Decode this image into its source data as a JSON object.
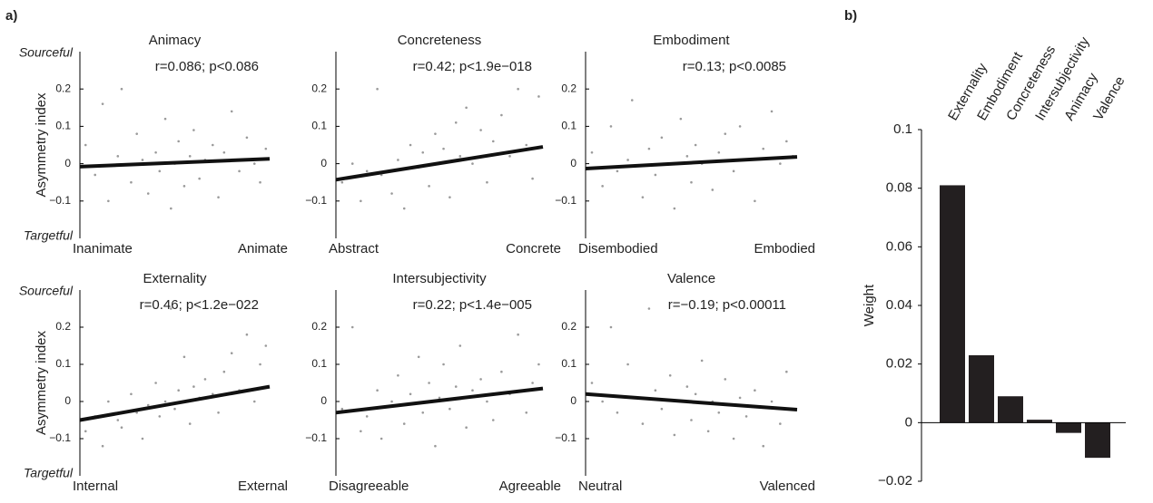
{
  "panel_labels": [
    "a)",
    "b)"
  ],
  "chart_data": [
    {
      "type": "scatter",
      "title": "Animacy",
      "annotation": "r=0.086; p<0.086",
      "ylabel": "Asymmetry index",
      "y_end_labels": [
        "Sourceful",
        "Targetful"
      ],
      "x_end_labels": [
        "Inanimate",
        "Animate"
      ],
      "xlim": [
        0,
        1
      ],
      "ylim": [
        -0.2,
        0.3
      ],
      "yticks": [
        {
          "value": -0.1,
          "label": "−0.1"
        },
        0,
        0.1,
        0.2
      ],
      "color": "#9a9a9a",
      "fit_color": "#111111",
      "x": [
        0.03,
        0.08,
        0.12,
        0.15,
        0.2,
        0.22,
        0.27,
        0.3,
        0.33,
        0.36,
        0.4,
        0.42,
        0.45,
        0.48,
        0.5,
        0.52,
        0.55,
        0.58,
        0.6,
        0.63,
        0.66,
        0.7,
        0.73,
        0.76,
        0.8,
        0.84,
        0.88,
        0.92,
        0.95,
        0.98
      ],
      "y": [
        0.05,
        -0.03,
        0.16,
        -0.1,
        0.02,
        0.2,
        -0.05,
        0.08,
        0.01,
        -0.08,
        0.03,
        -0.02,
        0.12,
        -0.12,
        0.0,
        0.06,
        -0.06,
        0.02,
        0.09,
        -0.04,
        0.01,
        0.05,
        -0.09,
        0.03,
        0.14,
        -0.02,
        0.07,
        0.0,
        -0.05,
        0.04
      ],
      "fit_line": [
        -0.008,
        0.013
      ]
    },
    {
      "type": "scatter",
      "title": "Concreteness",
      "annotation": "r=0.42; p<1.9e−018",
      "x_end_labels": [
        "Abstract",
        "Concrete"
      ],
      "xlim": [
        0,
        1
      ],
      "ylim": [
        -0.2,
        0.3
      ],
      "yticks": [
        {
          "value": -0.1,
          "label": "−0.1"
        },
        0,
        0.1,
        0.2
      ],
      "color": "#9a9a9a",
      "fit_color": "#111111",
      "x": [
        0.03,
        0.08,
        0.12,
        0.15,
        0.2,
        0.22,
        0.27,
        0.3,
        0.33,
        0.36,
        0.4,
        0.42,
        0.45,
        0.48,
        0.5,
        0.52,
        0.55,
        0.58,
        0.6,
        0.63,
        0.66,
        0.7,
        0.73,
        0.76,
        0.8,
        0.84,
        0.88,
        0.92,
        0.95,
        0.98
      ],
      "y": [
        -0.05,
        0.0,
        -0.1,
        -0.02,
        0.2,
        -0.03,
        -0.08,
        0.01,
        -0.12,
        0.05,
        -0.01,
        0.03,
        -0.06,
        0.08,
        0.0,
        0.04,
        -0.09,
        0.11,
        0.02,
        0.15,
        0.0,
        0.09,
        -0.05,
        0.06,
        0.13,
        0.02,
        0.2,
        0.05,
        -0.04,
        0.18
      ],
      "fit_line": [
        -0.043,
        0.045
      ]
    },
    {
      "type": "scatter",
      "title": "Embodiment",
      "annotation": "r=0.13; p<0.0085",
      "x_end_labels": [
        "Disembodied",
        "Embodied"
      ],
      "xlim": [
        0,
        1
      ],
      "ylim": [
        -0.2,
        0.3
      ],
      "yticks": [
        {
          "value": -0.1,
          "label": "−0.1"
        },
        0,
        0.1,
        0.2
      ],
      "color": "#9a9a9a",
      "fit_color": "#111111",
      "x": [
        0.03,
        0.08,
        0.12,
        0.15,
        0.2,
        0.22,
        0.27,
        0.3,
        0.33,
        0.36,
        0.4,
        0.42,
        0.45,
        0.48,
        0.5,
        0.52,
        0.55,
        0.58,
        0.6,
        0.63,
        0.66,
        0.7,
        0.73,
        0.76,
        0.8,
        0.84,
        0.88,
        0.92,
        0.95,
        0.98
      ],
      "y": [
        0.03,
        -0.06,
        0.1,
        -0.02,
        0.01,
        0.17,
        -0.09,
        0.04,
        -0.03,
        0.07,
        0.0,
        -0.12,
        0.12,
        0.02,
        -0.05,
        0.05,
        0.0,
        0.25,
        -0.07,
        0.03,
        0.08,
        -0.02,
        0.1,
        0.01,
        -0.1,
        0.04,
        0.14,
        0.0,
        0.06,
        0.02
      ],
      "fit_line": [
        -0.013,
        0.018
      ]
    },
    {
      "type": "scatter",
      "title": "Externality",
      "annotation": "r=0.46; p<1.2e−022",
      "ylabel": "Asymmetry index",
      "y_end_labels": [
        "Sourceful",
        "Targetful"
      ],
      "x_end_labels": [
        "Internal",
        "External"
      ],
      "xlim": [
        0,
        1
      ],
      "ylim": [
        -0.2,
        0.3
      ],
      "yticks": [
        {
          "value": -0.1,
          "label": "−0.1"
        },
        0,
        0.1,
        0.2
      ],
      "color": "#9a9a9a",
      "fit_color": "#111111",
      "x": [
        0.03,
        0.08,
        0.12,
        0.15,
        0.2,
        0.22,
        0.27,
        0.3,
        0.33,
        0.36,
        0.4,
        0.42,
        0.45,
        0.48,
        0.5,
        0.52,
        0.55,
        0.58,
        0.6,
        0.63,
        0.66,
        0.7,
        0.73,
        0.76,
        0.8,
        0.84,
        0.88,
        0.92,
        0.95,
        0.98
      ],
      "y": [
        -0.08,
        -0.04,
        -0.12,
        0.0,
        -0.05,
        -0.07,
        0.02,
        -0.03,
        -0.1,
        -0.01,
        0.05,
        -0.04,
        0.0,
        0.25,
        -0.02,
        0.03,
        0.12,
        -0.06,
        0.04,
        0.01,
        0.06,
        0.02,
        -0.03,
        0.08,
        0.13,
        0.03,
        0.18,
        0.0,
        0.1,
        0.15
      ],
      "fit_line": [
        -0.05,
        0.04
      ]
    },
    {
      "type": "scatter",
      "title": "Intersubjectivity",
      "annotation": "r=0.22; p<1.4e−005",
      "x_end_labels": [
        "Disagreeable",
        "Agreeable"
      ],
      "xlim": [
        0,
        1
      ],
      "ylim": [
        -0.2,
        0.3
      ],
      "yticks": [
        {
          "value": -0.1,
          "label": "−0.1"
        },
        0,
        0.1,
        0.2
      ],
      "color": "#9a9a9a",
      "fit_color": "#111111",
      "x": [
        0.03,
        0.08,
        0.12,
        0.15,
        0.2,
        0.22,
        0.27,
        0.3,
        0.33,
        0.36,
        0.4,
        0.42,
        0.45,
        0.48,
        0.5,
        0.52,
        0.55,
        0.58,
        0.6,
        0.63,
        0.66,
        0.7,
        0.73,
        0.76,
        0.8,
        0.84,
        0.88,
        0.92,
        0.95,
        0.98
      ],
      "y": [
        -0.02,
        0.2,
        -0.08,
        -0.04,
        0.03,
        -0.1,
        0.0,
        0.07,
        -0.06,
        0.02,
        0.12,
        -0.03,
        0.05,
        -0.12,
        0.01,
        0.1,
        -0.02,
        0.04,
        0.15,
        -0.07,
        0.03,
        0.06,
        0.0,
        -0.05,
        0.08,
        0.02,
        0.18,
        -0.03,
        0.05,
        0.1
      ],
      "fit_line": [
        -0.03,
        0.035
      ]
    },
    {
      "type": "scatter",
      "title": "Valence",
      "annotation": "r=−0.19; p<0.00011",
      "x_end_labels": [
        "Neutral",
        "Valenced"
      ],
      "xlim": [
        0,
        1
      ],
      "ylim": [
        -0.2,
        0.3
      ],
      "yticks": [
        {
          "value": -0.1,
          "label": "−0.1"
        },
        0,
        0.1,
        0.2
      ],
      "color": "#9a9a9a",
      "fit_color": "#111111",
      "x": [
        0.03,
        0.08,
        0.12,
        0.15,
        0.2,
        0.22,
        0.27,
        0.3,
        0.33,
        0.36,
        0.4,
        0.42,
        0.45,
        0.48,
        0.5,
        0.52,
        0.55,
        0.58,
        0.6,
        0.63,
        0.66,
        0.7,
        0.73,
        0.76,
        0.8,
        0.84,
        0.88,
        0.92,
        0.95,
        0.98
      ],
      "y": [
        0.05,
        0.0,
        0.2,
        -0.03,
        0.1,
        0.01,
        -0.06,
        0.25,
        0.03,
        -0.02,
        0.07,
        -0.09,
        0.0,
        0.04,
        -0.05,
        0.02,
        0.11,
        -0.08,
        0.0,
        -0.03,
        0.06,
        -0.1,
        0.01,
        -0.04,
        0.03,
        -0.12,
        0.0,
        -0.06,
        0.08,
        -0.02
      ],
      "fit_line": [
        0.02,
        -0.022
      ]
    },
    {
      "type": "bar",
      "ylabel": "Weight",
      "categories": [
        "Externality",
        "Embodiment",
        "Concreteness",
        "Intersubjectivity",
        "Animacy",
        "Valence"
      ],
      "values": [
        0.081,
        0.023,
        0.009,
        0.001,
        -0.0035,
        -0.012
      ],
      "color": "#231f20",
      "ylim": [
        -0.02,
        0.1
      ],
      "yticks": [
        {
          "value": -0.02,
          "label": "−0.02"
        },
        0,
        0.02,
        0.04,
        0.06,
        0.08,
        0.1
      ]
    }
  ]
}
